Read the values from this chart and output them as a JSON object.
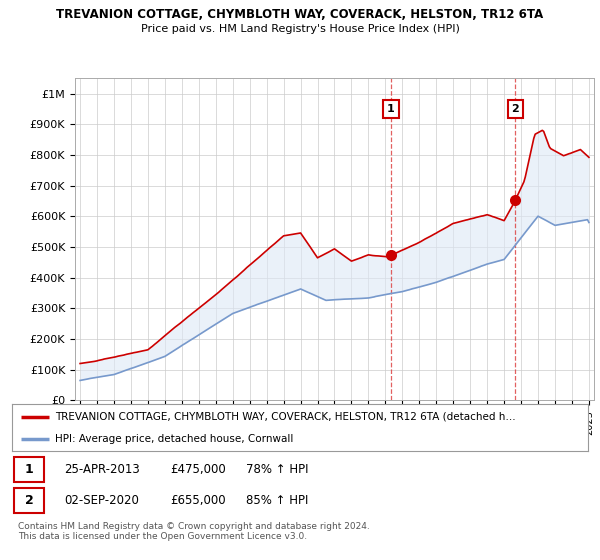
{
  "title_line1": "TREVANION COTTAGE, CHYMBLOTH WAY, COVERACK, HELSTON, TR12 6TA",
  "title_line2": "Price paid vs. HM Land Registry's House Price Index (HPI)",
  "ylim": [
    0,
    1050000
  ],
  "yticks": [
    0,
    100000,
    200000,
    300000,
    400000,
    500000,
    600000,
    700000,
    800000,
    900000,
    1000000
  ],
  "ytick_labels": [
    "£0",
    "£100K",
    "£200K",
    "£300K",
    "£400K",
    "£500K",
    "£600K",
    "£700K",
    "£800K",
    "£900K",
    "£1M"
  ],
  "red_color": "#cc0000",
  "blue_color": "#7799cc",
  "purchase1_year": 2013.33,
  "purchase1_value": 475000,
  "purchase1_label": "1",
  "purchase2_year": 2020.67,
  "purchase2_value": 655000,
  "purchase2_label": "2",
  "legend_red_text": "TREVANION COTTAGE, CHYMBLOTH WAY, COVERACK, HELSTON, TR12 6TA (detached h…",
  "legend_blue_text": "HPI: Average price, detached house, Cornwall",
  "annotation1_date": "25-APR-2013",
  "annotation1_price": "£475,000",
  "annotation1_hpi": "78% ↑ HPI",
  "annotation2_date": "02-SEP-2020",
  "annotation2_price": "£655,000",
  "annotation2_hpi": "85% ↑ HPI",
  "footer": "Contains HM Land Registry data © Crown copyright and database right 2024.\nThis data is licensed under the Open Government Licence v3.0.",
  "shaded_color": "#dde8f5",
  "dashed_color": "#dd4444"
}
